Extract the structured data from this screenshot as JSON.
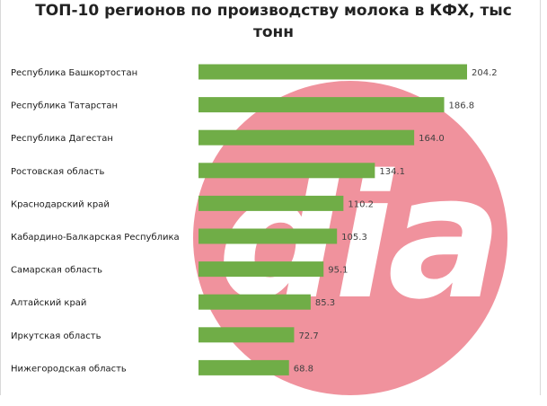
{
  "title_lines": [
    "ТОП-10 регионов по производству молока в КФХ, тыс",
    "тонн"
  ],
  "watermark": {
    "text": "dia",
    "color": "#f0929d"
  },
  "chart_data": {
    "type": "bar",
    "orientation": "horizontal",
    "title": "ТОП-10 регионов по производству молока в КФХ, тыс тонн",
    "categories": [
      "Республика Башкортостан",
      "Республика Татарстан",
      "Республика Дагестан",
      "Ростовская область",
      "Краснодарский край",
      "Кабардино-Балкарская Республика",
      "Самарская область",
      "Алтайский край",
      "Иркутская область",
      "Нижегородская область"
    ],
    "values": [
      204.2,
      186.8,
      164.0,
      134.1,
      110.2,
      105.3,
      95.1,
      85.3,
      72.7,
      68.8
    ],
    "value_labels": [
      "204.2",
      "186.8",
      "164.0",
      "134.1",
      "110.2",
      "105.3",
      "95.1",
      "85.3",
      "72.7",
      "68.8"
    ],
    "xlim": [
      0,
      204.2
    ],
    "bar_color": "#70ad47",
    "grid": false,
    "legend": "none"
  }
}
